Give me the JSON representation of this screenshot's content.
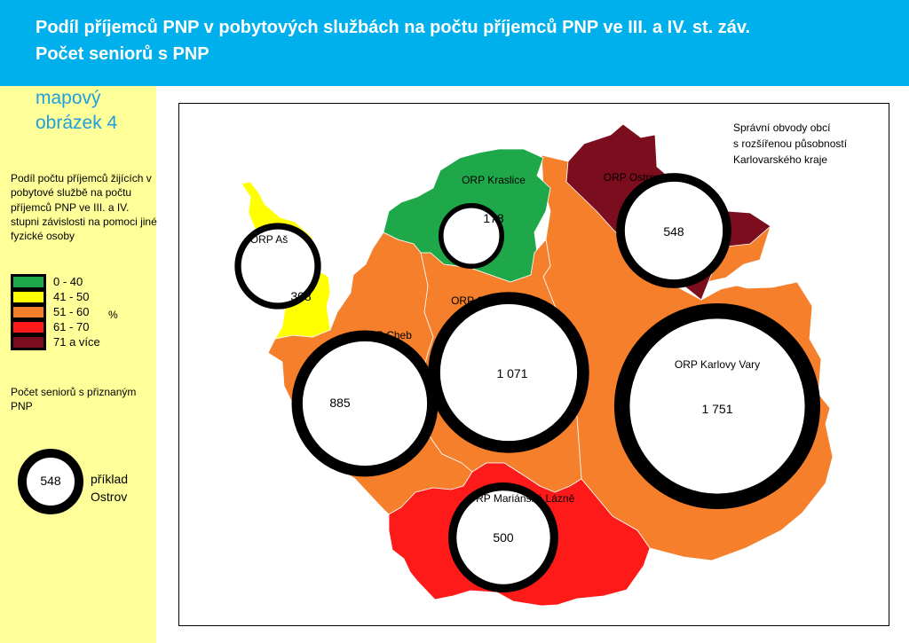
{
  "header": {
    "title_line1": "Podíl příjemců PNP v pobytových službách na počtu příjemců PNP ve III. a IV. st. záv.",
    "title_line2": "Počet seniorů s PNP"
  },
  "sidebar": {
    "subtitle_line1": "mapový",
    "subtitle_line2": "obrázek 4",
    "legend_title": "Podíl počtu příjemců žijících v pobytové službě na počtu příjemců PNP ve III. a IV. stupni závislosti na pomoci jiné fyzické osoby",
    "classes": [
      {
        "label": "0 - 40",
        "color": "#1fa84a"
      },
      {
        "label": "41 - 50",
        "color": "#ffff00"
      },
      {
        "label": "51 - 60",
        "color": "#f57f2a"
      },
      {
        "label": "61 - 70",
        "color": "#ff1a1a"
      },
      {
        "label": "71 a více",
        "color": "#7b0d1e"
      }
    ],
    "unit": "%",
    "seniors_title": "Počet seniorů s přiznaným PNP",
    "example_value": "548",
    "example_label_line1": "příklad",
    "example_label_line2": "Ostrov"
  },
  "map": {
    "note_line1": "Správní obvody obcí",
    "note_line2": "s rozšířenou působností",
    "note_line3": "Karlovarského kraje",
    "regions": [
      {
        "id": "as",
        "name": "ORP Aš",
        "value": "308",
        "class": 1,
        "seniors": 308
      },
      {
        "id": "kraslice",
        "name": "ORP Kraslice",
        "value": "178",
        "class": 0,
        "seniors": 178
      },
      {
        "id": "ostrov",
        "name": "ORP Ostrov",
        "value": "548",
        "class": 4,
        "seniors": 548
      },
      {
        "id": "sokolov",
        "name": "ORP Sokolov",
        "value": "1 071",
        "class": 2,
        "seniors": 1071
      },
      {
        "id": "cheb",
        "name": "ORP Cheb",
        "value": "885",
        "class": 2,
        "seniors": 885
      },
      {
        "id": "karlovy-vary",
        "name": "ORP Karlovy Vary",
        "value": "1 751",
        "class": 2,
        "seniors": 1751
      },
      {
        "id": "marianske-lazne",
        "name": "ORP Mariánské Lázně",
        "value": "500",
        "class": 3,
        "seniors": 500
      }
    ]
  }
}
